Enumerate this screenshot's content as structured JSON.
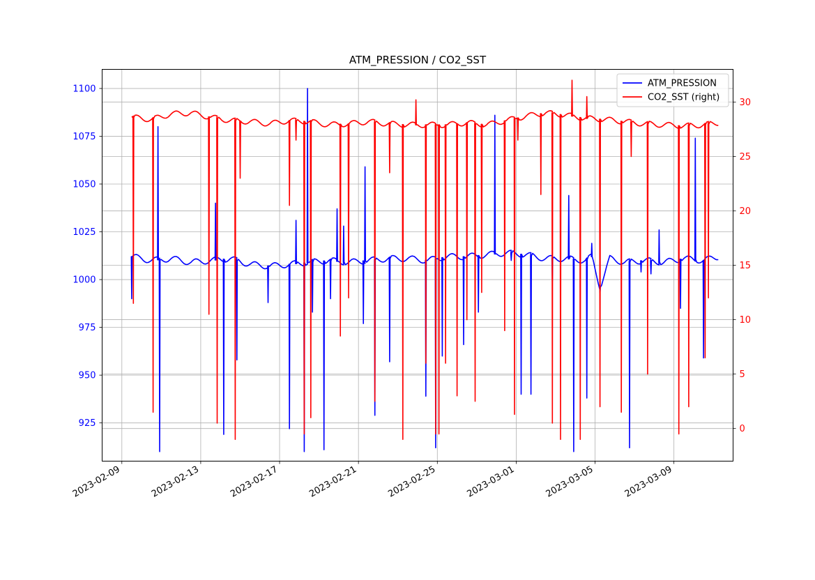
{
  "chart_data": {
    "type": "line",
    "title": "ATM_PRESSION / CO2_SST",
    "xlabel": "",
    "x_ticks": [
      "2023-02-09",
      "2023-02-13",
      "2023-02-17",
      "2023-02-21",
      "2023-02-25",
      "2023-03-01",
      "2023-03-05",
      "2023-03-09"
    ],
    "xlim": [
      "2023-02-08",
      "2023-03-12"
    ],
    "grid": true,
    "legend_position": "upper right",
    "left_axis": {
      "ylabel": "",
      "ylim": [
        905,
        1110
      ],
      "ticks": [
        925,
        950,
        975,
        1000,
        1025,
        1050,
        1075,
        1100
      ],
      "color": "#0000ff"
    },
    "right_axis": {
      "ylabel": "",
      "ylim": [
        -3,
        33
      ],
      "ticks": [
        0,
        5,
        10,
        15,
        20,
        25,
        30
      ],
      "color": "#ff0000"
    },
    "series": [
      {
        "name": "ATM_PRESSION",
        "axis": "left",
        "color": "#0000ff",
        "baseline_points": [
          [
            "2023-02-09T12:00",
            1012
          ],
          [
            "2023-02-10T12:00",
            1010
          ],
          [
            "2023-02-11T12:00",
            1011
          ],
          [
            "2023-02-12T12:00",
            1009
          ],
          [
            "2023-02-13T12:00",
            1010
          ],
          [
            "2023-02-14T12:00",
            1011
          ],
          [
            "2023-02-15T12:00",
            1008
          ],
          [
            "2023-02-16T12:00",
            1007
          ],
          [
            "2023-02-17T12:00",
            1008
          ],
          [
            "2023-02-18T12:00",
            1009
          ],
          [
            "2023-02-19T12:00",
            1010
          ],
          [
            "2023-02-20T12:00",
            1009
          ],
          [
            "2023-02-21T12:00",
            1010
          ],
          [
            "2023-02-22T12:00",
            1011
          ],
          [
            "2023-02-23T12:00",
            1011
          ],
          [
            "2023-02-24T12:00",
            1010
          ],
          [
            "2023-02-25T12:00",
            1012
          ],
          [
            "2023-02-26T12:00",
            1012
          ],
          [
            "2023-02-27T12:00",
            1013
          ],
          [
            "2023-02-28T12:00",
            1014
          ],
          [
            "2023-03-01T12:00",
            1013
          ],
          [
            "2023-03-02T12:00",
            1011
          ],
          [
            "2023-03-03T12:00",
            1011
          ],
          [
            "2023-03-04T12:00",
            1010
          ],
          [
            "2023-03-04T20:00",
            1012
          ],
          [
            "2023-03-05T06:00",
            996
          ],
          [
            "2023-03-05T18:00",
            1011
          ],
          [
            "2023-03-06T12:00",
            1009
          ],
          [
            "2023-03-07T12:00",
            1010
          ],
          [
            "2023-03-08T12:00",
            1009
          ],
          [
            "2023-03-09T12:00",
            1011
          ],
          [
            "2023-03-10T12:00",
            1010
          ],
          [
            "2023-03-11T06:00",
            1012
          ]
        ],
        "spikes": [
          [
            "2023-02-09T12:00",
            990
          ],
          [
            "2023-02-10T20:00",
            1080
          ],
          [
            "2023-02-10T22:00",
            910
          ],
          [
            "2023-02-13T18:00",
            1040
          ],
          [
            "2023-02-14T04:00",
            919
          ],
          [
            "2023-02-14T20:00",
            958
          ],
          [
            "2023-02-16T10:00",
            988
          ],
          [
            "2023-02-17T12:00",
            922
          ],
          [
            "2023-02-17T20:00",
            1031
          ],
          [
            "2023-02-18T06:00",
            910
          ],
          [
            "2023-02-18T10:00",
            1100
          ],
          [
            "2023-02-18T16:00",
            983
          ],
          [
            "2023-02-19T06:00",
            911
          ],
          [
            "2023-02-19T14:00",
            990
          ],
          [
            "2023-02-19T22:00",
            1037
          ],
          [
            "2023-02-20T06:00",
            1028
          ],
          [
            "2023-02-21T06:00",
            977
          ],
          [
            "2023-02-21T08:00",
            1059
          ],
          [
            "2023-02-21T20:00",
            929
          ],
          [
            "2023-02-22T14:00",
            957
          ],
          [
            "2023-02-24T10:00",
            939
          ],
          [
            "2023-02-24T22:00",
            912
          ],
          [
            "2023-02-25T06:00",
            960
          ],
          [
            "2023-02-26T08:00",
            966
          ],
          [
            "2023-02-27T02:00",
            983
          ],
          [
            "2023-02-27T22:00",
            1086
          ],
          [
            "2023-02-28T18:00",
            1010
          ],
          [
            "2023-03-01T06:00",
            940
          ],
          [
            "2023-03-01T18:00",
            940
          ],
          [
            "2023-03-02T20:00",
            999
          ],
          [
            "2023-03-03T16:00",
            1044
          ],
          [
            "2023-03-03T22:00",
            910
          ],
          [
            "2023-03-04T14:00",
            938
          ],
          [
            "2023-03-04T20:00",
            1019
          ],
          [
            "2023-03-05T06:00",
            993
          ],
          [
            "2023-03-06T18:00",
            912
          ],
          [
            "2023-03-07T08:00",
            1004
          ],
          [
            "2023-03-07T20:00",
            1003
          ],
          [
            "2023-03-08T06:00",
            1026
          ],
          [
            "2023-03-09T08:00",
            985
          ],
          [
            "2023-03-10T02:00",
            1074
          ],
          [
            "2023-03-10T12:00",
            959
          ]
        ]
      },
      {
        "name": "CO2_SST (right)",
        "axis": "right",
        "color": "#ff0000",
        "baseline_points": [
          [
            "2023-02-09T12:00",
            28.6
          ],
          [
            "2023-02-10T12:00",
            28.4
          ],
          [
            "2023-02-11T12:00",
            28.9
          ],
          [
            "2023-02-12T12:00",
            29.0
          ],
          [
            "2023-02-13T12:00",
            28.6
          ],
          [
            "2023-02-14T12:00",
            28.3
          ],
          [
            "2023-02-15T12:00",
            28.2
          ],
          [
            "2023-02-16T12:00",
            28.0
          ],
          [
            "2023-02-17T12:00",
            28.3
          ],
          [
            "2023-02-18T12:00",
            28.2
          ],
          [
            "2023-02-19T12:00",
            27.9
          ],
          [
            "2023-02-20T12:00",
            28.0
          ],
          [
            "2023-02-21T12:00",
            28.2
          ],
          [
            "2023-02-22T12:00",
            28.0
          ],
          [
            "2023-02-23T12:00",
            27.9
          ],
          [
            "2023-02-24T12:00",
            27.9
          ],
          [
            "2023-02-25T12:00",
            27.9
          ],
          [
            "2023-02-26T12:00",
            28.1
          ],
          [
            "2023-02-27T12:00",
            27.9
          ],
          [
            "2023-02-28T12:00",
            28.3
          ],
          [
            "2023-03-01T12:00",
            28.7
          ],
          [
            "2023-03-02T12:00",
            29.0
          ],
          [
            "2023-03-03T12:00",
            28.8
          ],
          [
            "2023-03-04T12:00",
            28.5
          ],
          [
            "2023-03-05T12:00",
            28.4
          ],
          [
            "2023-03-06T12:00",
            28.2
          ],
          [
            "2023-03-07T12:00",
            28.0
          ],
          [
            "2023-03-08T12:00",
            27.9
          ],
          [
            "2023-03-09T12:00",
            27.8
          ],
          [
            "2023-03-10T12:00",
            27.9
          ],
          [
            "2023-03-11T06:00",
            28.1
          ]
        ],
        "spikes": [
          [
            "2023-02-09T14:00",
            11.5
          ],
          [
            "2023-02-10T14:00",
            1.5
          ],
          [
            "2023-02-13T10:00",
            10.5
          ],
          [
            "2023-02-13T20:00",
            0.5
          ],
          [
            "2023-02-14T18:00",
            -1.0
          ],
          [
            "2023-02-15T00:00",
            23.0
          ],
          [
            "2023-02-17T12:00",
            20.5
          ],
          [
            "2023-02-17T20:00",
            26.5
          ],
          [
            "2023-02-18T06:00",
            -0.5
          ],
          [
            "2023-02-18T14:00",
            1.0
          ],
          [
            "2023-02-20T02:00",
            8.5
          ],
          [
            "2023-02-20T12:00",
            12.0
          ],
          [
            "2023-02-21T20:00",
            2.5
          ],
          [
            "2023-02-22T14:00",
            23.5
          ],
          [
            "2023-02-23T06:00",
            -1.0
          ],
          [
            "2023-02-23T22:00",
            30.2
          ],
          [
            "2023-02-24T10:00",
            6.0
          ],
          [
            "2023-02-24T22:00",
            -0.5
          ],
          [
            "2023-02-25T02:00",
            -0.5
          ],
          [
            "2023-02-25T10:00",
            6.0
          ],
          [
            "2023-02-26T00:00",
            3.0
          ],
          [
            "2023-02-26T12:00",
            10.0
          ],
          [
            "2023-02-26T22:00",
            2.5
          ],
          [
            "2023-02-27T06:00",
            12.5
          ],
          [
            "2023-02-28T22:00",
            1.3
          ],
          [
            "2023-02-28T10:00",
            9.0
          ],
          [
            "2023-03-01T02:00",
            26.5
          ],
          [
            "2023-03-02T06:00",
            21.5
          ],
          [
            "2023-03-02T20:00",
            0.5
          ],
          [
            "2023-03-03T06:00",
            -1.0
          ],
          [
            "2023-03-03T20:00",
            32.0
          ],
          [
            "2023-03-04T06:00",
            -1.0
          ],
          [
            "2023-03-04T14:00",
            30.5
          ],
          [
            "2023-03-05T06:00",
            2.0
          ],
          [
            "2023-03-06T08:00",
            1.5
          ],
          [
            "2023-03-06T20:00",
            25.0
          ],
          [
            "2023-03-07T16:00",
            5.0
          ],
          [
            "2023-03-09T06:00",
            -0.5
          ],
          [
            "2023-03-09T18:00",
            2.0
          ],
          [
            "2023-03-10T14:00",
            6.5
          ],
          [
            "2023-03-10T18:00",
            12.0
          ]
        ]
      }
    ]
  }
}
